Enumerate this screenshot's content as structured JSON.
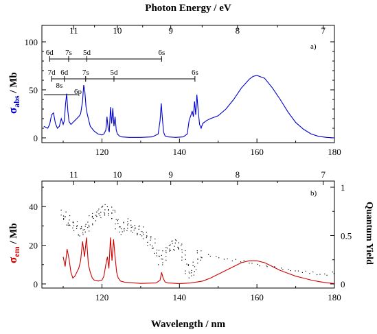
{
  "chart_data": [
    {
      "panel": "a)",
      "type": "line",
      "top_axis_title": "Photon Energy / eV",
      "top_ticks": [
        "11",
        "10",
        "9",
        "8",
        "7"
      ],
      "top_tick_ev": [
        11,
        10,
        9,
        8,
        7
      ],
      "ylabel": {
        "sigma": "σ",
        "sub": "abs",
        "unit": " / Mb"
      },
      "ylim": [
        0,
        100
      ],
      "yticks": [
        "0",
        "50",
        "100"
      ],
      "xlim": [
        104.5,
        180
      ],
      "xticks": [
        "120",
        "140",
        "160",
        "180"
      ],
      "series": [
        {
          "color": "#0000cc",
          "x": [
            105,
            106,
            106.5,
            107,
            107.5,
            108,
            108.5,
            109,
            109.5,
            110,
            110.3,
            110.6,
            110.9,
            111.2,
            111.5,
            112,
            112.5,
            113,
            113.5,
            114,
            114.5,
            115,
            115.3,
            115.6,
            115.9,
            116.2,
            116.6,
            117,
            118,
            119,
            120,
            120.5,
            121,
            121.3,
            121.6,
            121.9,
            122.2,
            122.5,
            122.8,
            123.1,
            123.4,
            123.7,
            124,
            124.5,
            125,
            127,
            130,
            133,
            134.5,
            135,
            135.3,
            135.6,
            135.9,
            136.3,
            137,
            139,
            141,
            142,
            142.5,
            143,
            143.3,
            143.6,
            143.9,
            144.2,
            144.5,
            144.8,
            145.2,
            145.6,
            146,
            147,
            148,
            150,
            152,
            154,
            156,
            158,
            159,
            160,
            162,
            164,
            166,
            168,
            170,
            172,
            174,
            176,
            178,
            180
          ],
          "y": [
            12,
            10,
            14,
            24,
            26,
            15,
            10,
            12,
            20,
            14,
            18,
            35,
            46,
            28,
            17,
            14,
            16,
            18,
            20,
            22,
            25,
            38,
            55,
            48,
            32,
            25,
            18,
            12,
            7,
            4,
            3,
            4,
            8,
            22,
            10,
            6,
            32,
            15,
            31,
            12,
            22,
            8,
            4,
            2,
            1,
            0.5,
            0.5,
            1,
            4,
            18,
            36,
            20,
            6,
            2,
            1,
            0.5,
            1,
            4,
            18,
            24,
            28,
            22,
            38,
            24,
            45,
            30,
            14,
            10,
            15,
            18,
            20,
            23,
            30,
            40,
            52,
            61,
            64,
            65,
            62,
            52,
            40,
            27,
            16,
            9,
            4,
            1.5,
            0.5,
            0
          ]
        }
      ],
      "annotations": [
        {
          "label": "6d",
          "x": 106.5
        },
        {
          "label": "7s",
          "x": 111.4
        },
        {
          "label": "5d",
          "x": 116.1
        },
        {
          "label": "6s",
          "x": 135.4
        },
        {
          "label": "7d",
          "x": 107.0
        },
        {
          "label": "6d",
          "x": 110.3
        },
        {
          "label": "7s",
          "x": 115.8
        },
        {
          "label": "5d",
          "x": 123.1
        },
        {
          "label": "6s",
          "x": 144.0
        },
        {
          "label": "8s",
          "x": 108.3
        },
        {
          "label": "6p",
          "x": 113.8
        }
      ]
    },
    {
      "panel": "b)",
      "type": "line",
      "xlabel": "Wavelength / nm",
      "ylabel": {
        "sigma": "σ",
        "sub": "em",
        "unit": " / Mb"
      },
      "ylim": [
        0,
        50
      ],
      "yticks": [
        "0",
        "20",
        "40"
      ],
      "y2label": "Quantum Yield",
      "y2lim": [
        0,
        1
      ],
      "y2ticks": [
        "0",
        "0.5",
        "1"
      ],
      "xlim": [
        104.5,
        180
      ],
      "xticks": [
        "120",
        "140",
        "160",
        "180"
      ],
      "top_ticks": [
        "11",
        "10",
        "9",
        "8",
        "7"
      ],
      "top_tick_ev": [
        11,
        10,
        9,
        8,
        7
      ],
      "series": [
        {
          "color": "#cc0000",
          "x": [
            110,
            110.5,
            111,
            111.5,
            112,
            112.5,
            113,
            114,
            114.5,
            115,
            115.5,
            116,
            116.5,
            117,
            117.5,
            118,
            119,
            120,
            120.5,
            121,
            121.4,
            121.8,
            122.2,
            122.6,
            123,
            123.4,
            123.8,
            124.2,
            124.8,
            126,
            130,
            134,
            135,
            135.4,
            135.8,
            136.3,
            137,
            140,
            143,
            146,
            148,
            150,
            152,
            154,
            156,
            158,
            160,
            162,
            164,
            166,
            168,
            170,
            172,
            174,
            176,
            178,
            180
          ],
          "y": [
            14,
            9,
            18,
            13,
            6,
            3,
            4,
            8,
            12,
            22,
            14,
            24,
            10,
            6,
            3,
            2,
            1.5,
            2,
            4,
            10,
            14,
            8,
            24,
            12,
            23,
            14,
            6,
            3,
            1.5,
            0.8,
            0.3,
            0.5,
            2,
            6,
            3,
            1,
            0.5,
            0.2,
            0.5,
            1.5,
            3,
            5,
            7,
            9,
            11,
            12,
            12,
            11,
            9,
            7,
            5.5,
            4,
            3,
            2,
            1.2,
            0.6,
            0.2
          ]
        },
        {
          "color": "#000000",
          "axis": "y2",
          "x": [
            110,
            111,
            112,
            113,
            114,
            115,
            116,
            117,
            118,
            119,
            120,
            121,
            122,
            123,
            124,
            125,
            126,
            127,
            128,
            129,
            130,
            131,
            132,
            133,
            134,
            135,
            136,
            137,
            138,
            139,
            140,
            141,
            142,
            143,
            144,
            145,
            146,
            148,
            150,
            152,
            154,
            156,
            158,
            160,
            162,
            164,
            166,
            168,
            170,
            172,
            174,
            176,
            178,
            180
          ],
          "y": [
            0.72,
            0.66,
            0.62,
            0.6,
            0.55,
            0.56,
            0.6,
            0.66,
            0.7,
            0.73,
            0.76,
            0.78,
            0.76,
            0.72,
            0.62,
            0.55,
            0.6,
            0.63,
            0.58,
            0.56,
            0.55,
            0.5,
            0.45,
            0.42,
            0.33,
            0.25,
            0.3,
            0.37,
            0.4,
            0.41,
            0.4,
            0.3,
            0.16,
            0.1,
            0.18,
            0.3,
            0.28,
            0.3,
            0.28,
            0.26,
            0.25,
            0.24,
            0.22,
            0.2,
            0.19,
            0.18,
            0.16,
            0.15,
            0.14,
            0.13,
            0.12,
            0.1,
            0.1,
            0.12
          ]
        }
      ]
    }
  ]
}
